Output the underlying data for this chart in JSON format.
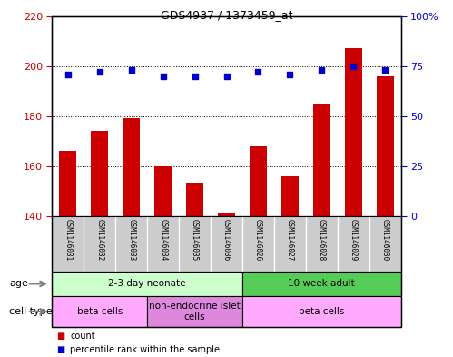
{
  "title": "GDS4937 / 1373459_at",
  "samples": [
    "GSM1146031",
    "GSM1146032",
    "GSM1146033",
    "GSM1146034",
    "GSM1146035",
    "GSM1146036",
    "GSM1146026",
    "GSM1146027",
    "GSM1146028",
    "GSM1146029",
    "GSM1146030"
  ],
  "counts": [
    166,
    174,
    179,
    160,
    153,
    141,
    168,
    156,
    185,
    207,
    196
  ],
  "percentiles": [
    71,
    72,
    73,
    70,
    70,
    70,
    72,
    71,
    73,
    75,
    73
  ],
  "ylim_left": [
    140,
    220
  ],
  "ylim_right": [
    0,
    100
  ],
  "yticks_left": [
    140,
    160,
    180,
    200,
    220
  ],
  "yticks_right": [
    0,
    25,
    50,
    75,
    100
  ],
  "ytick_labels_right": [
    "0",
    "25",
    "50",
    "75",
    "100%"
  ],
  "bar_color": "#cc0000",
  "dot_color": "#0000cc",
  "age_groups": [
    {
      "label": "2-3 day neonate",
      "start": 0,
      "end": 5,
      "color": "#ccffcc"
    },
    {
      "label": "10 week adult",
      "start": 6,
      "end": 10,
      "color": "#55cc55"
    }
  ],
  "cell_type_groups": [
    {
      "label": "beta cells",
      "start": 0,
      "end": 2,
      "color": "#ffaaff"
    },
    {
      "label": "non-endocrine islet\ncells",
      "start": 3,
      "end": 5,
      "color": "#dd88dd"
    },
    {
      "label": "beta cells",
      "start": 6,
      "end": 10,
      "color": "#ffaaff"
    }
  ],
  "tick_color_left": "#cc0000",
  "tick_color_right": "#0000cc",
  "xtick_label_bg": "#cccccc",
  "border_color": "#000000"
}
